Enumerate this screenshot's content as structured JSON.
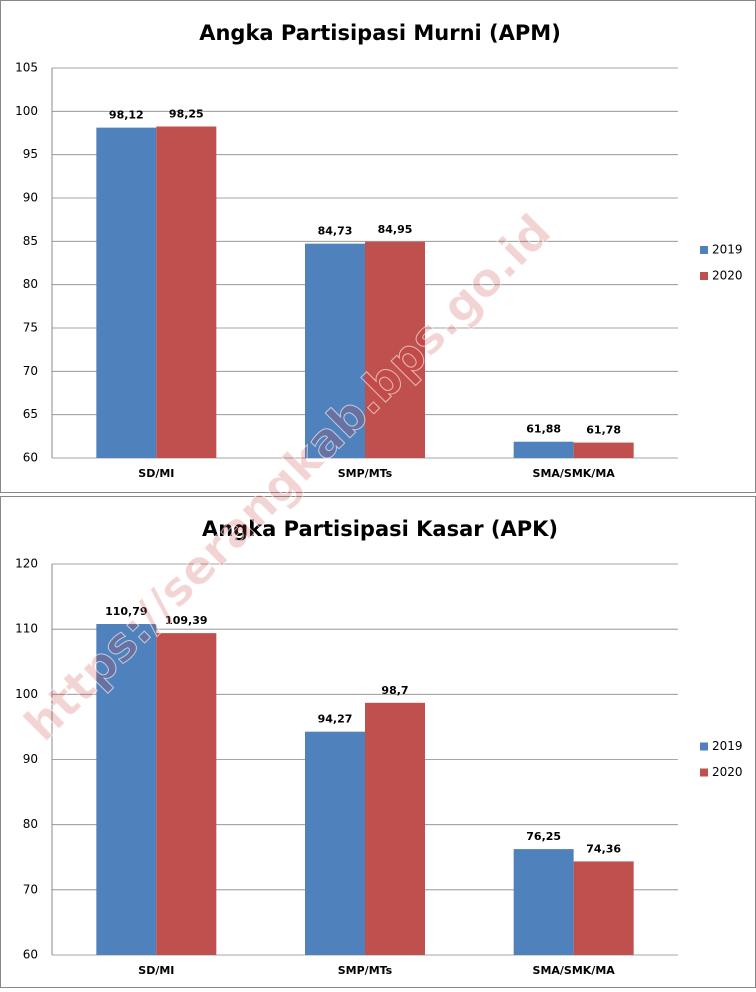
{
  "chart_data": [
    {
      "type": "bar",
      "title": "Angka Partisipasi Murni (APM)",
      "categories": [
        "SD/MI",
        "SMP/MTs",
        "SMA/SMK/MA"
      ],
      "series": [
        {
          "name": "2019",
          "color": "#4f81bd",
          "values": [
            98.12,
            84.73,
            61.88
          ],
          "value_labels": [
            "98,12",
            "84,73",
            "61,88"
          ]
        },
        {
          "name": "2020",
          "color": "#c0504d",
          "values": [
            98.25,
            84.95,
            61.78
          ],
          "value_labels": [
            "98,25",
            "84,95",
            "61,78"
          ]
        }
      ],
      "ylim": [
        60,
        105
      ],
      "yticks": [
        60,
        65,
        70,
        75,
        80,
        85,
        90,
        95,
        100,
        105
      ],
      "grid": true,
      "legend": "right"
    },
    {
      "type": "bar",
      "title": "Angka Partisipasi Kasar (APK)",
      "categories": [
        "SD/MI",
        "SMP/MTs",
        "SMA/SMK/MA"
      ],
      "series": [
        {
          "name": "2019",
          "color": "#4f81bd",
          "values": [
            110.79,
            94.27,
            76.25
          ],
          "value_labels": [
            "110,79",
            "94,27",
            "76,25"
          ]
        },
        {
          "name": "2020",
          "color": "#c0504d",
          "values": [
            109.39,
            98.7,
            74.36
          ],
          "value_labels": [
            "109,39",
            "98,7",
            "74,36"
          ]
        }
      ],
      "ylim": [
        60,
        120
      ],
      "yticks": [
        60,
        70,
        80,
        90,
        100,
        110,
        120
      ],
      "grid": true,
      "legend": "right"
    }
  ],
  "watermark": "https://serangkab.bps.go.id"
}
